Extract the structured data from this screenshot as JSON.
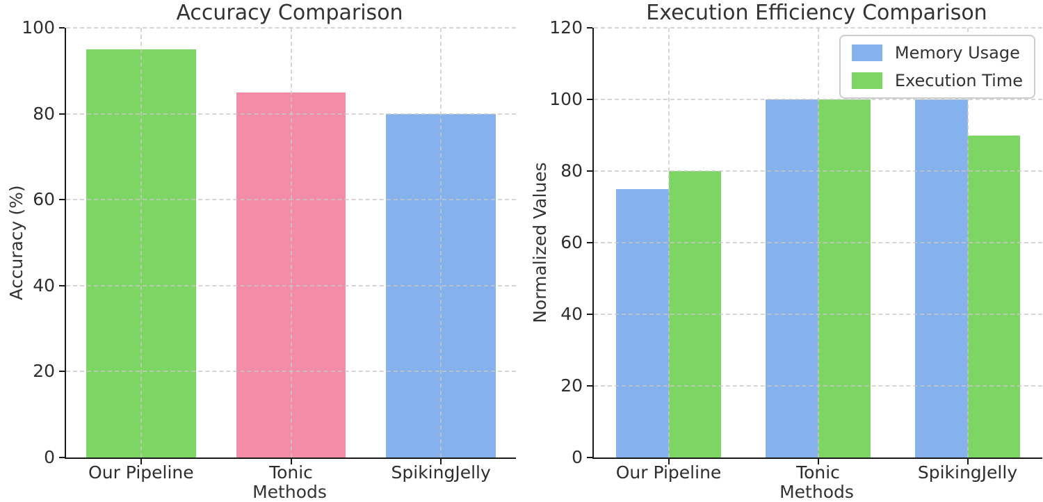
{
  "figure": {
    "background": "#ffffff",
    "text_color": "#333333",
    "spine_color": "#1a1a1a",
    "grid_color": "#c8c8c8",
    "grid_style": "dashed"
  },
  "chart_data": [
    {
      "type": "bar",
      "title": "Accuracy Comparison",
      "xlabel": "Methods",
      "ylabel": "Accuracy (%)",
      "categories": [
        "Our Pipeline",
        "Tonic",
        "SpikingJelly"
      ],
      "values": [
        95,
        85,
        80
      ],
      "bar_colors": [
        "#7dd664",
        "#f38da7",
        "#85b2ec"
      ],
      "ylim": [
        0,
        100
      ],
      "yticks": [
        0,
        20,
        40,
        60,
        80,
        100
      ],
      "grid": true,
      "legend": false
    },
    {
      "type": "bar",
      "title": "Execution Efficiency Comparison",
      "xlabel": "Methods",
      "ylabel": "Normalized Values",
      "categories": [
        "Our Pipeline",
        "Tonic",
        "SpikingJelly"
      ],
      "series": [
        {
          "name": "Memory Usage",
          "color": "#85b2ec",
          "values": [
            75,
            100,
            100
          ]
        },
        {
          "name": "Execution Time",
          "color": "#7dd664",
          "values": [
            80,
            100,
            90
          ]
        }
      ],
      "ylim": [
        0,
        120
      ],
      "yticks": [
        0,
        20,
        40,
        60,
        80,
        100,
        120
      ],
      "grid": true,
      "legend": true,
      "legend_position": "upper right"
    }
  ]
}
